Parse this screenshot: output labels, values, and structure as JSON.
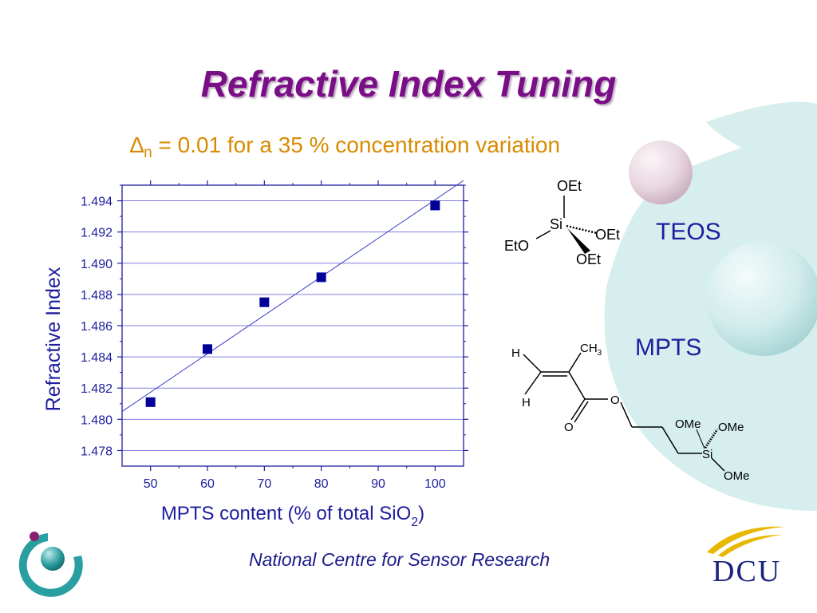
{
  "slide": {
    "title": "Refractive Index Tuning",
    "subtitle_delta": "∆",
    "subtitle_sub": "n",
    "subtitle_text": " = 0.01 for a 35 % concentration variation",
    "footer": "National Centre for Sensor Research",
    "logo_text": "DCU"
  },
  "molecules": {
    "teos": {
      "name": "TEOS",
      "atoms": [
        "OEt",
        "Si",
        "EtO",
        "OEt",
        "OEt"
      ]
    },
    "mpts": {
      "name": "MPTS",
      "atoms": [
        "H",
        "H",
        "CH",
        "3",
        "O",
        "O",
        "OMe",
        "OMe",
        "Si",
        "OMe"
      ]
    }
  },
  "colors": {
    "title": "#7a0e86",
    "subtitle": "#d98a00",
    "chart_text": "#1d1d9e",
    "marker": "#000099",
    "fit_line": "#3a3acc",
    "grid": "#7f7fe0"
  },
  "chart_data": {
    "type": "scatter",
    "x": [
      50,
      60,
      70,
      80,
      100
    ],
    "y": [
      1.4811,
      1.4845,
      1.4875,
      1.4891,
      1.4937
    ],
    "fit_line": {
      "x": [
        45,
        105
      ],
      "y": [
        1.4805,
        1.4953
      ]
    },
    "xlabel": "MPTS content (% of total SiO",
    "xlabel_sub": "2",
    "xlabel_end": ")",
    "ylabel": "Refractive Index",
    "xlim": [
      45,
      105
    ],
    "ylim": [
      1.477,
      1.495
    ],
    "xticks": [
      "50",
      "60",
      "70",
      "80",
      "90",
      "100"
    ],
    "yticks": [
      "1.478",
      "1.480",
      "1.482",
      "1.484",
      "1.486",
      "1.488",
      "1.490",
      "1.492",
      "1.494"
    ],
    "grid": true
  }
}
